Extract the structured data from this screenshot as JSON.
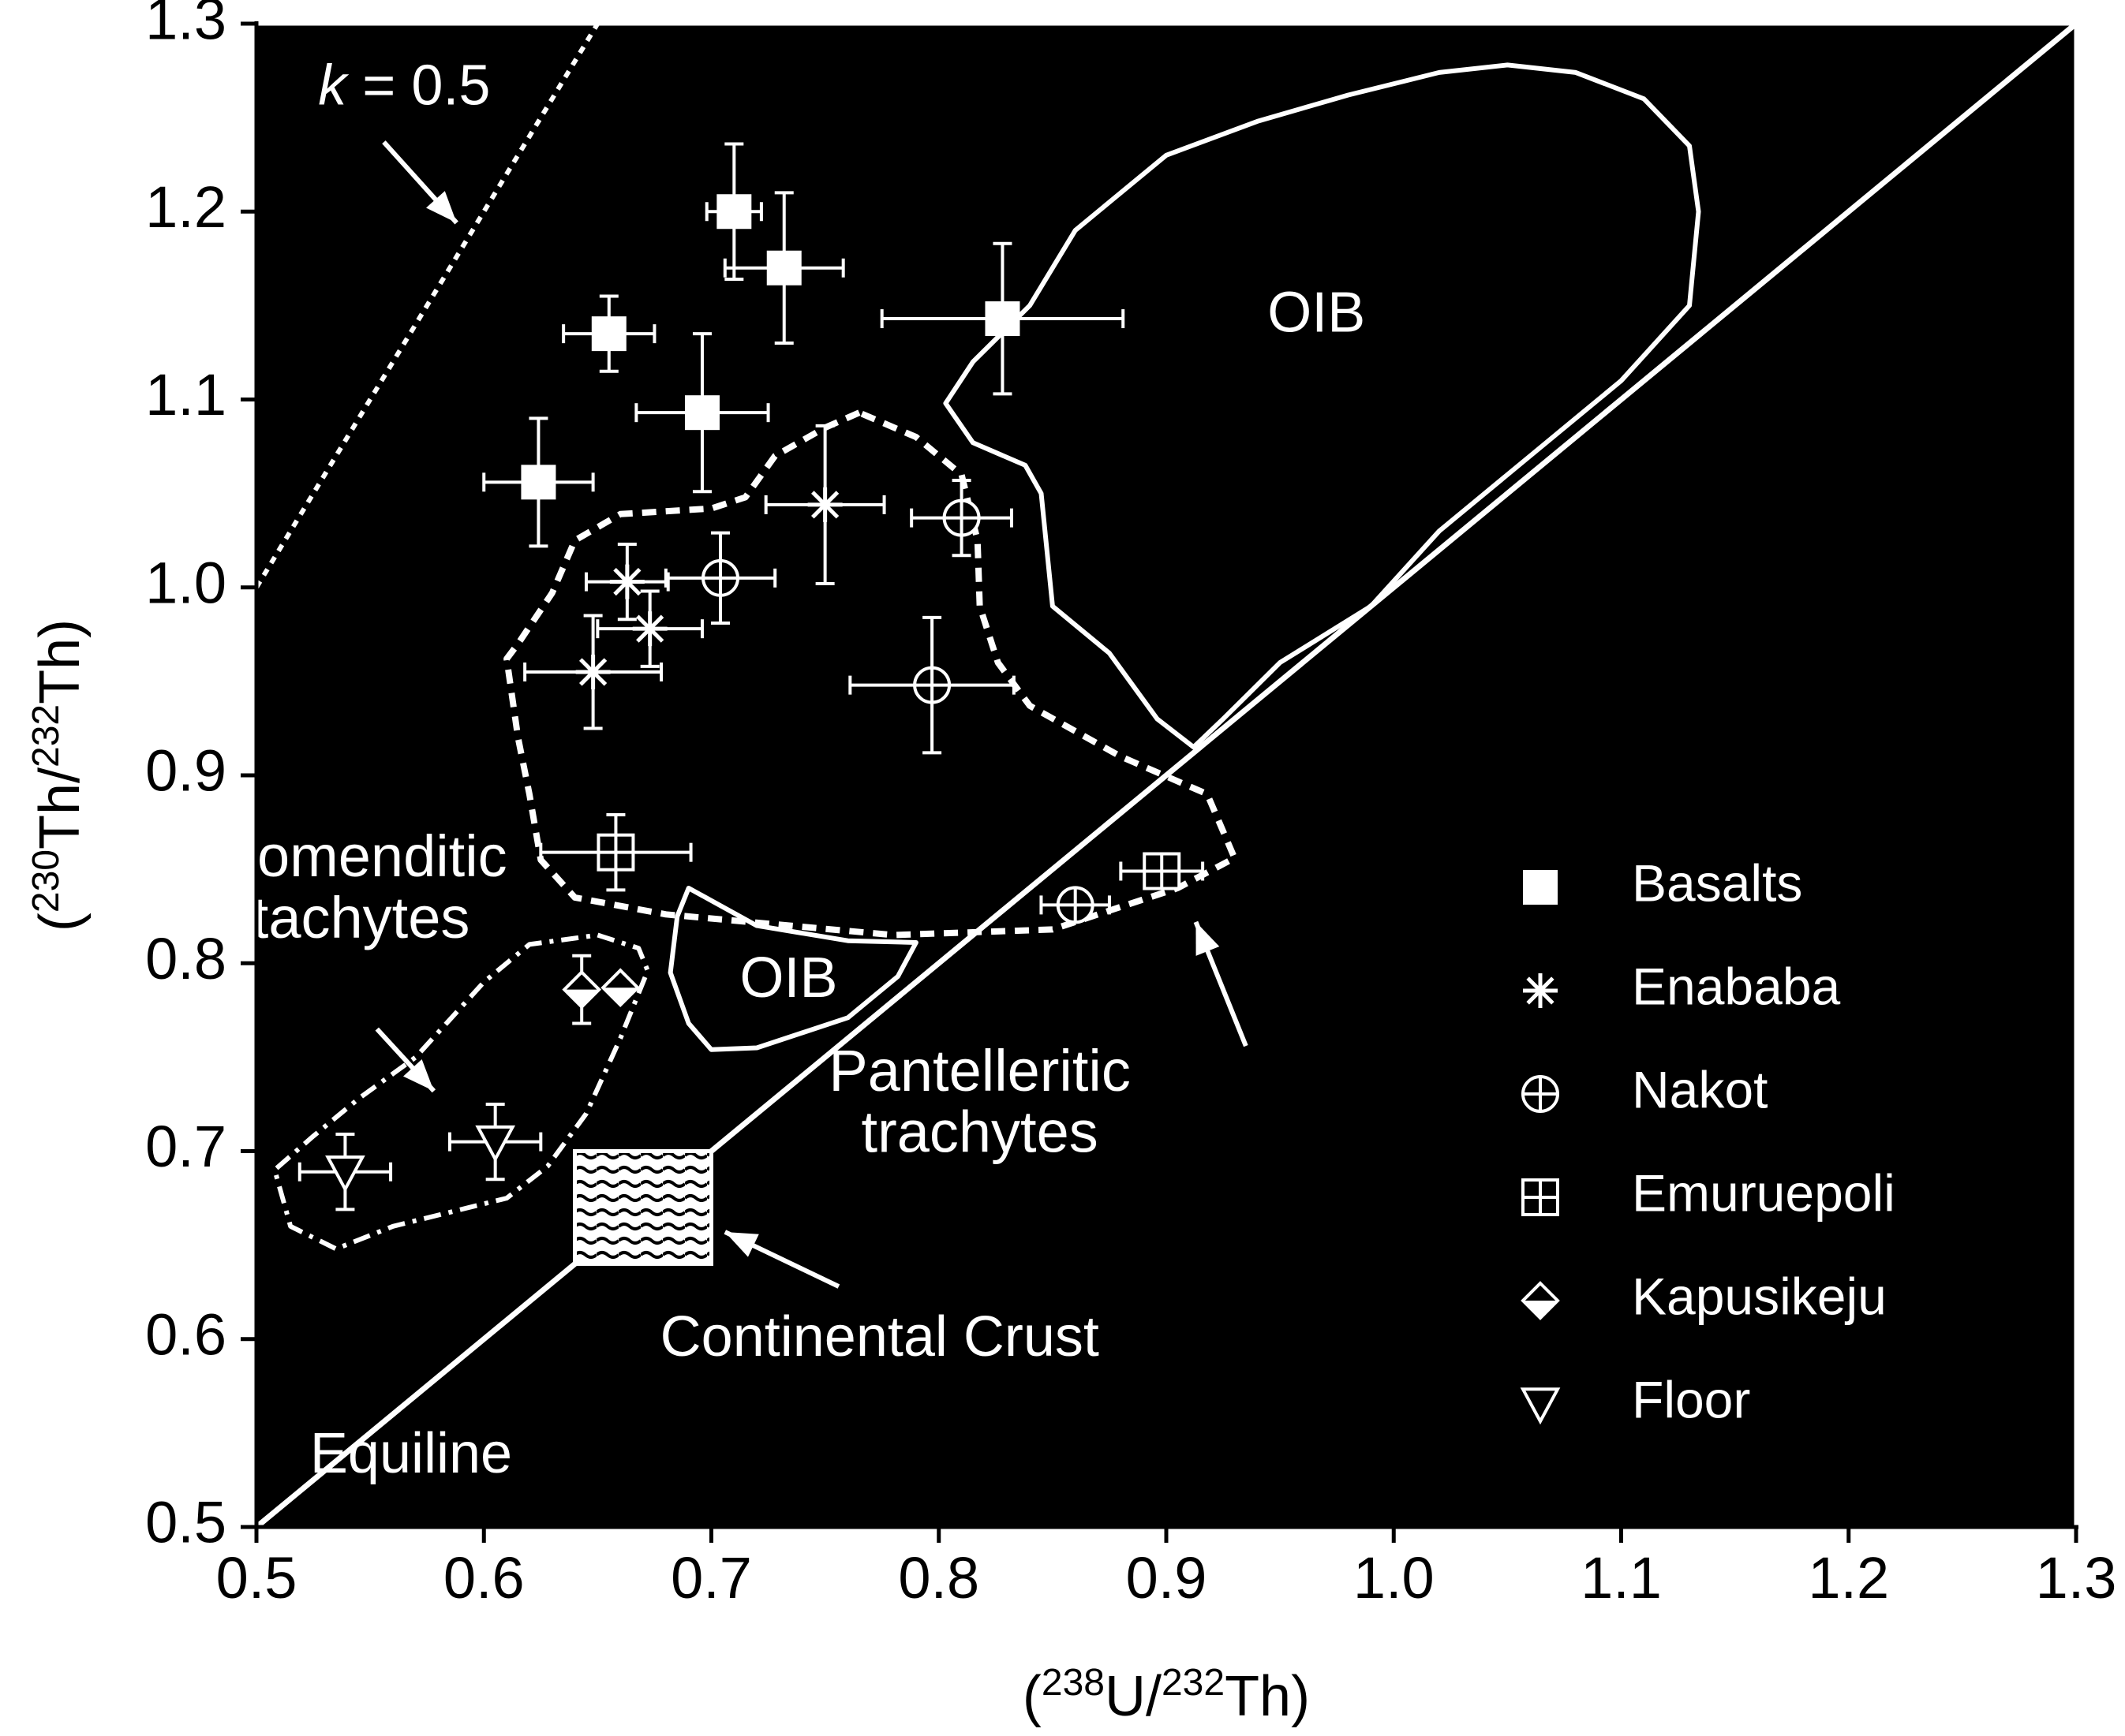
{
  "chart_data": {
    "type": "scatter",
    "xlabel_parts": [
      "(",
      "238",
      "U/",
      "232",
      "Th)"
    ],
    "ylabel_parts": [
      "(",
      "230",
      "Th/",
      "232",
      "Th)"
    ],
    "xlim": [
      0.5,
      1.3
    ],
    "ylim": [
      0.5,
      1.3
    ],
    "xticks": [
      "0.5",
      "0.6",
      "0.7",
      "0.8",
      "0.9",
      "1.0",
      "1.1",
      "1.2",
      "1.3"
    ],
    "yticks": [
      "0.5",
      "0.6",
      "0.7",
      "0.8",
      "0.9",
      "1.0",
      "1.1",
      "1.2",
      "1.3"
    ],
    "grid": false,
    "legend_position": "right",
    "colors": {
      "background": "#ffffff",
      "plot_background": "#000000",
      "foreground": "#ffffff"
    },
    "series": [
      {
        "name": "Basalts",
        "marker": "filled-square",
        "points": [
          {
            "x": 0.71,
            "y": 1.2,
            "xerr": 0.012,
            "yerr": 0.036
          },
          {
            "x": 0.732,
            "y": 1.17,
            "xerr": 0.026,
            "yerr": 0.04
          },
          {
            "x": 0.655,
            "y": 1.135,
            "xerr": 0.02,
            "yerr": 0.02
          },
          {
            "x": 0.828,
            "y": 1.143,
            "xerr": 0.053,
            "yerr": 0.04
          },
          {
            "x": 0.696,
            "y": 1.093,
            "xerr": 0.029,
            "yerr": 0.042
          },
          {
            "x": 0.624,
            "y": 1.056,
            "xerr": 0.024,
            "yerr": 0.034
          }
        ]
      },
      {
        "name": "Enababa",
        "marker": "asterisk",
        "points": [
          {
            "x": 0.75,
            "y": 1.044,
            "xerr": 0.026,
            "yerr": 0.042
          },
          {
            "x": 0.663,
            "y": 1.003,
            "xerr": 0.018,
            "yerr": 0.02
          },
          {
            "x": 0.673,
            "y": 0.978,
            "xerr": 0.023,
            "yerr": 0.02
          },
          {
            "x": 0.648,
            "y": 0.955,
            "xerr": 0.03,
            "yerr": 0.03
          }
        ]
      },
      {
        "name": "Nakot",
        "marker": "circle-plus",
        "points": [
          {
            "x": 0.81,
            "y": 1.037,
            "xerr": 0.022,
            "yerr": 0.02
          },
          {
            "x": 0.704,
            "y": 1.005,
            "xerr": 0.024,
            "yerr": 0.024
          },
          {
            "x": 0.797,
            "y": 0.948,
            "xerr": 0.036,
            "yerr": 0.036
          },
          {
            "x": 0.86,
            "y": 0.831,
            "xerr": 0.015,
            "yerr": 0.0
          }
        ]
      },
      {
        "name": "Emuruepoli",
        "marker": "square-plus",
        "points": [
          {
            "x": 0.658,
            "y": 0.859,
            "xerr": 0.033,
            "yerr": 0.02
          },
          {
            "x": 0.898,
            "y": 0.849,
            "xerr": 0.018,
            "yerr": 0.0
          }
        ]
      },
      {
        "name": "Kapusikeju",
        "marker": "half-diamond",
        "points": [
          {
            "x": 0.643,
            "y": 0.786,
            "xerr": 0.0,
            "yerr": 0.018
          },
          {
            "x": 0.66,
            "y": 0.787,
            "xerr": 0.0,
            "yerr": 0.0
          }
        ]
      },
      {
        "name": "Floor",
        "marker": "open-triangle-down",
        "points": [
          {
            "x": 0.539,
            "y": 0.689,
            "xerr": 0.02,
            "yerr": 0.02
          },
          {
            "x": 0.605,
            "y": 0.705,
            "xerr": 0.02,
            "yerr": 0.02
          }
        ]
      }
    ],
    "fields": [
      {
        "label": "OIB",
        "style": "solid",
        "label_at": [
          0.966,
          1.144
        ],
        "polygon": [
          [
            0.84,
            1.15
          ],
          [
            0.86,
            1.19
          ],
          [
            0.88,
            1.21
          ],
          [
            0.9,
            1.23
          ],
          [
            0.94,
            1.248
          ],
          [
            0.98,
            1.262
          ],
          [
            1.02,
            1.274
          ],
          [
            1.05,
            1.278
          ],
          [
            1.08,
            1.274
          ],
          [
            1.11,
            1.26
          ],
          [
            1.13,
            1.235
          ],
          [
            1.134,
            1.2
          ],
          [
            1.13,
            1.15
          ],
          [
            1.1,
            1.11
          ],
          [
            1.06,
            1.07
          ],
          [
            1.02,
            1.03
          ],
          [
            0.99,
            0.99
          ],
          [
            0.95,
            0.96
          ],
          [
            0.925,
            0.93
          ],
          [
            0.912,
            0.915
          ],
          [
            0.896,
            0.93
          ],
          [
            0.875,
            0.965
          ],
          [
            0.85,
            0.99
          ],
          [
            0.845,
            1.05
          ],
          [
            0.838,
            1.065
          ],
          [
            0.815,
            1.077
          ],
          [
            0.803,
            1.098
          ],
          [
            0.815,
            1.12
          ],
          [
            0.84,
            1.15
          ]
        ]
      },
      {
        "label": "OIB",
        "style": "solid",
        "label_at": [
          0.734,
          0.79
        ],
        "polygon": [
          [
            0.69,
            0.84
          ],
          [
            0.72,
            0.82
          ],
          [
            0.76,
            0.812
          ],
          [
            0.79,
            0.811
          ],
          [
            0.782,
            0.793
          ],
          [
            0.76,
            0.771
          ],
          [
            0.72,
            0.755
          ],
          [
            0.7,
            0.754
          ],
          [
            0.69,
            0.768
          ],
          [
            0.682,
            0.795
          ],
          [
            0.685,
            0.825
          ],
          [
            0.69,
            0.84
          ]
        ]
      },
      {
        "label": "Pantelleritic trachytes",
        "style": "dashed",
        "label_at": [
          0.818,
          0.726
        ],
        "polygon": [
          [
            0.765,
            1.093
          ],
          [
            0.75,
            1.085
          ],
          [
            0.728,
            1.07
          ],
          [
            0.715,
            1.048
          ],
          [
            0.7,
            1.042
          ],
          [
            0.66,
            1.039
          ],
          [
            0.64,
            1.025
          ],
          [
            0.63,
            0.997
          ],
          [
            0.615,
            0.97
          ],
          [
            0.61,
            0.962
          ],
          [
            0.615,
            0.92
          ],
          [
            0.62,
            0.89
          ],
          [
            0.625,
            0.855
          ],
          [
            0.64,
            0.835
          ],
          [
            0.68,
            0.826
          ],
          [
            0.78,
            0.815
          ],
          [
            0.85,
            0.818
          ],
          [
            0.88,
            0.83
          ],
          [
            0.905,
            0.84
          ],
          [
            0.93,
            0.856
          ],
          [
            0.918,
            0.89
          ],
          [
            0.88,
            0.91
          ],
          [
            0.84,
            0.937
          ],
          [
            0.826,
            0.96
          ],
          [
            0.818,
            0.99
          ],
          [
            0.817,
            1.025
          ],
          [
            0.81,
            1.06
          ],
          [
            0.79,
            1.08
          ],
          [
            0.765,
            1.093
          ]
        ]
      },
      {
        "label": "Comenditic tachytes",
        "style": "dash-dot",
        "label_at": [
          0.546,
          0.84
        ],
        "polygon": [
          [
            0.65,
            0.815
          ],
          [
            0.668,
            0.808
          ],
          [
            0.672,
            0.796
          ],
          [
            0.66,
            0.76
          ],
          [
            0.645,
            0.72
          ],
          [
            0.628,
            0.692
          ],
          [
            0.61,
            0.675
          ],
          [
            0.56,
            0.66
          ],
          [
            0.535,
            0.648
          ],
          [
            0.515,
            0.66
          ],
          [
            0.508,
            0.69
          ],
          [
            0.525,
            0.708
          ],
          [
            0.545,
            0.728
          ],
          [
            0.57,
            0.75
          ],
          [
            0.6,
            0.79
          ],
          [
            0.62,
            0.81
          ],
          [
            0.65,
            0.815
          ]
        ]
      }
    ],
    "reference_lines": [
      {
        "label": "Equiline",
        "style": "solid",
        "x": [
          0.5,
          1.3
        ],
        "y": [
          0.5,
          1.3
        ]
      },
      {
        "label_parts": [
          "k",
          " = 0.5"
        ],
        "style": "dotted",
        "x": [
          0.5,
          0.65
        ],
        "y": [
          1.0,
          1.3
        ]
      }
    ],
    "boxes": [
      {
        "label": "Continental Crust",
        "style": "wavy-hatch",
        "x": [
          0.64,
          0.7
        ],
        "y": [
          0.64,
          0.7
        ]
      }
    ],
    "annotations": [
      {
        "text": "Equiline",
        "at": [
          0.568,
          0.537
        ]
      },
      {
        "text": "Continental Crust",
        "at": [
          0.774,
          0.599
        ]
      },
      {
        "text": "Pantelleritic trachytes",
        "at": [
          0.818,
          0.726
        ]
      },
      {
        "text": "Comenditic tachytes",
        "at": [
          0.546,
          0.84
        ]
      },
      {
        "text": "k = 0.5",
        "at": [
          0.565,
          1.265
        ]
      }
    ],
    "arrows": [
      {
        "for": "k = 0.5",
        "from": [
          0.556,
          1.237
        ],
        "to": [
          0.588,
          1.194
        ]
      },
      {
        "for": "Continental Crust",
        "from": [
          0.756,
          0.628
        ],
        "to": [
          0.706,
          0.657
        ]
      },
      {
        "for": "Pantelleritic trachytes",
        "from": [
          0.935,
          0.756
        ],
        "to": [
          0.913,
          0.822
        ]
      },
      {
        "for": "Comenditic tachytes",
        "from": [
          0.553,
          0.765
        ],
        "to": [
          0.578,
          0.732
        ]
      }
    ]
  }
}
